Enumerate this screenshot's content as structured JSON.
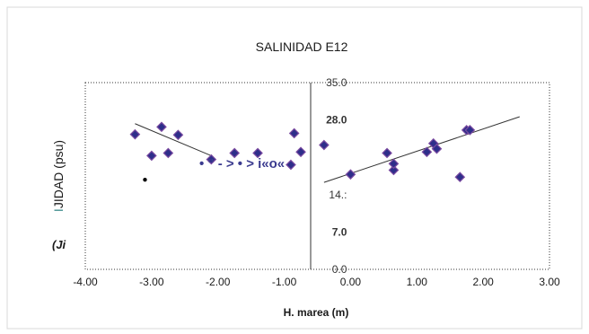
{
  "chart_data": {
    "type": "scatter",
    "title": "SALINIDAD  E12",
    "xlabel": "H. marea (m)",
    "ylabel": "\u001bJIDAD (psu)",
    "ylabel_prefix_glyph": "I",
    "xlim": [
      -4.0,
      3.0
    ],
    "ylim": [
      0,
      35
    ],
    "x_ticks": [
      "-4.00",
      "-3.00",
      "-2.00",
      "-1.00",
      "0.00",
      "1.00",
      "2.00",
      "3.00"
    ],
    "y_ticks": [
      {
        "value": 35.0,
        "label": "35.0",
        "bold": false
      },
      {
        "value": 28.0,
        "label": "28.0",
        "bold": true
      },
      {
        "value": 21.0,
        "label": "",
        "bold": false
      },
      {
        "value": 14.0,
        "label": "14.:",
        "bold": false
      },
      {
        "value": 7.0,
        "label": "7.0",
        "bold": true
      },
      {
        "value": 0.0,
        "label": "0.0",
        "bold": false
      }
    ],
    "grid": false,
    "points": [
      {
        "x": -3.25,
        "y": 25.3
      },
      {
        "x": -3.0,
        "y": 21.3
      },
      {
        "x": -2.85,
        "y": 26.7
      },
      {
        "x": -2.75,
        "y": 21.8
      },
      {
        "x": -2.6,
        "y": 25.2
      },
      {
        "x": -2.1,
        "y": 20.6
      },
      {
        "x": -1.75,
        "y": 21.8
      },
      {
        "x": -1.4,
        "y": 21.8
      },
      {
        "x": -0.9,
        "y": 19.6
      },
      {
        "x": -0.85,
        "y": 25.5
      },
      {
        "x": -0.75,
        "y": 22.0
      },
      {
        "x": -0.4,
        "y": 23.3
      },
      {
        "x": 0.0,
        "y": 17.8
      },
      {
        "x": 0.55,
        "y": 21.8
      },
      {
        "x": 0.65,
        "y": 18.6
      },
      {
        "x": 0.65,
        "y": 19.8
      },
      {
        "x": 1.15,
        "y": 22.0
      },
      {
        "x": 1.25,
        "y": 23.6
      },
      {
        "x": 1.3,
        "y": 22.6
      },
      {
        "x": 1.65,
        "y": 17.3
      },
      {
        "x": 1.75,
        "y": 26.1
      },
      {
        "x": 1.8,
        "y": 26.1
      }
    ],
    "trendlines": [
      {
        "x": [
          -3.25,
          -2.1
        ],
        "y": [
          27.3,
          21.3
        ]
      },
      {
        "x": [
          -0.4,
          2.55
        ],
        "y": [
          16.3,
          28.6
        ]
      }
    ],
    "stray_dot": {
      "x": -3.1,
      "y": 16.8
    },
    "overlay_text": "• \" - > • > i«o«",
    "corner_label": "(Ji",
    "colors": {
      "marker": "#2e2e8a",
      "marker_outline": "#7a4aa0",
      "trendline": "#333333",
      "axis": "#333333",
      "artifact": "#3b3b8f"
    }
  }
}
